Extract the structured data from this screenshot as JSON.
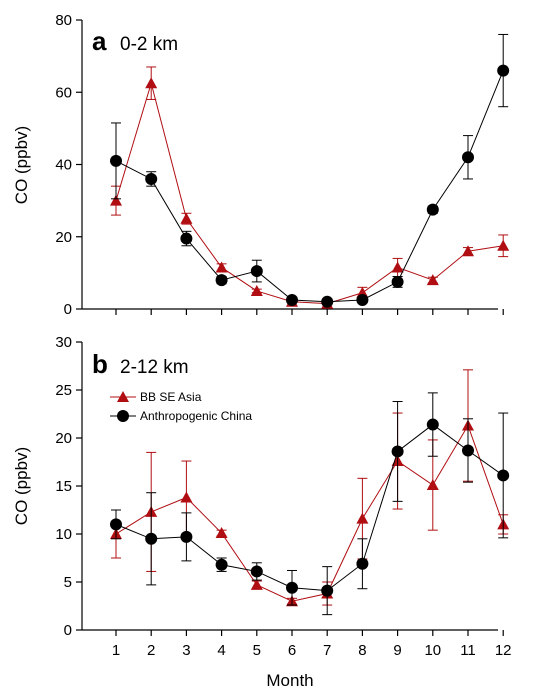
{
  "colors": {
    "bb": "#b00e12",
    "anthro": "#000000"
  },
  "legend": {
    "placement": "top-left of panel b",
    "entries": [
      "BB SE Asia",
      "Anthropogenic China"
    ]
  },
  "chart_data": [
    {
      "type": "line",
      "panel_letter": "a",
      "title": "0-2 km",
      "xlabel": "Month",
      "ylabel": "CO (ppbv)",
      "x": [
        1,
        2,
        3,
        4,
        5,
        6,
        7,
        8,
        9,
        10,
        11,
        12
      ],
      "x_tick_labels": [
        "1",
        "2",
        "3",
        "4",
        "5",
        "6",
        "7",
        "8",
        "9",
        "10",
        "11",
        "12"
      ],
      "ylim": [
        0,
        80
      ],
      "y_ticks": [
        0,
        20,
        40,
        60,
        80
      ],
      "y_tick_labels": [
        "0",
        "20",
        "40",
        "60",
        "80"
      ],
      "show_x_tick_labels": false,
      "grid": false,
      "series": [
        {
          "name": "BB SE Asia",
          "marker": "triangle",
          "values": [
            30,
            62.5,
            25,
            11.5,
            5,
            2,
            1.5,
            4.5,
            11.5,
            8,
            16,
            17.5
          ],
          "errors": [
            4,
            4.5,
            1.5,
            1,
            0.5,
            0.3,
            0.3,
            1.5,
            2.5,
            0.8,
            1,
            3
          ]
        },
        {
          "name": "Anthropogenic China",
          "marker": "circle",
          "values": [
            41,
            36,
            19.5,
            8,
            10.5,
            2.5,
            2,
            2.5,
            7.5,
            27.5,
            42,
            66
          ],
          "errors": [
            10.5,
            2,
            2,
            1,
            3,
            0.5,
            0.5,
            0.5,
            1.5,
            1,
            6,
            10
          ]
        }
      ]
    },
    {
      "type": "line",
      "panel_letter": "b",
      "title": "2-12 km",
      "xlabel": "Month",
      "ylabel": "CO (ppbv)",
      "x": [
        1,
        2,
        3,
        4,
        5,
        6,
        7,
        8,
        9,
        10,
        11,
        12
      ],
      "x_tick_labels": [
        "1",
        "2",
        "3",
        "4",
        "5",
        "6",
        "7",
        "8",
        "9",
        "10",
        "11",
        "12"
      ],
      "ylim": [
        0,
        30
      ],
      "y_ticks": [
        0,
        5,
        10,
        15,
        20,
        25,
        30
      ],
      "y_tick_labels": [
        "0",
        "5",
        "10",
        "15",
        "20",
        "25",
        "30"
      ],
      "show_x_tick_labels": true,
      "grid": false,
      "series": [
        {
          "name": "BB SE Asia",
          "marker": "triangle",
          "values": [
            10,
            12.3,
            13.8,
            10.1,
            4.7,
            3.0,
            3.8,
            11.6,
            17.6,
            15.1,
            21.3,
            11.0
          ],
          "errors": [
            2.5,
            6.2,
            3.8,
            0.3,
            0.4,
            0.3,
            1.2,
            4.2,
            5.0,
            4.7,
            5.8,
            1.0
          ]
        },
        {
          "name": "Anthropogenic China",
          "marker": "circle",
          "values": [
            11.0,
            9.5,
            9.7,
            6.8,
            6.1,
            4.4,
            4.1,
            6.9,
            18.6,
            21.4,
            18.7,
            16.1
          ],
          "errors": [
            1.5,
            4.8,
            2.5,
            0.7,
            0.9,
            1.8,
            2.5,
            2.6,
            5.2,
            3.3,
            3.3,
            6.5
          ]
        }
      ]
    }
  ]
}
